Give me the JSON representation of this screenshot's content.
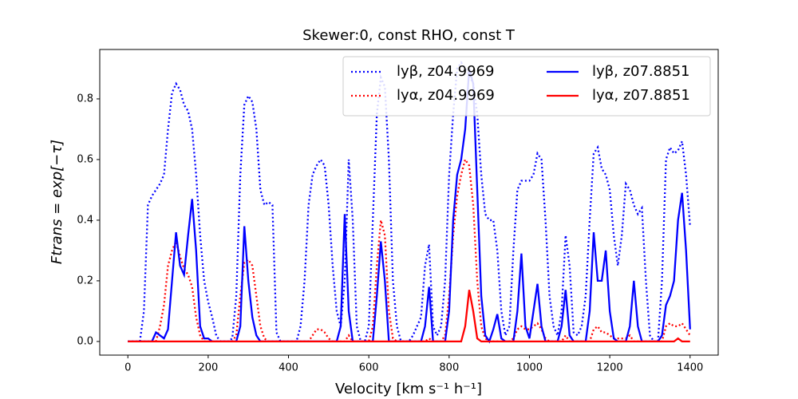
{
  "chart_data": {
    "type": "line",
    "title": "Skewer:0, const RHO, const T",
    "xlabel": "Velocity [km s⁻¹ h⁻¹]",
    "ylabel": "Ftrans = exp[−τ]",
    "xlim": [
      -70,
      1470
    ],
    "ylim": [
      -0.045,
      0.963
    ],
    "xticks": [
      0,
      200,
      400,
      600,
      800,
      1000,
      1200,
      1400
    ],
    "yticks": [
      {
        "value": 0,
        "label": "0.0"
      },
      0.2,
      0.4,
      0.6,
      0.8
    ],
    "legend": "upper right",
    "x": [
      0,
      10,
      20,
      30,
      40,
      50,
      60,
      70,
      80,
      90,
      100,
      110,
      120,
      130,
      140,
      150,
      160,
      170,
      180,
      190,
      200,
      210,
      220,
      230,
      240,
      250,
      260,
      270,
      280,
      290,
      300,
      310,
      320,
      330,
      340,
      350,
      360,
      370,
      380,
      390,
      400,
      410,
      420,
      430,
      440,
      450,
      460,
      470,
      480,
      490,
      500,
      510,
      520,
      530,
      540,
      550,
      560,
      570,
      580,
      590,
      600,
      610,
      620,
      630,
      640,
      650,
      660,
      670,
      680,
      690,
      700,
      710,
      720,
      730,
      740,
      750,
      760,
      770,
      780,
      790,
      800,
      810,
      820,
      830,
      840,
      850,
      860,
      870,
      880,
      890,
      900,
      910,
      920,
      930,
      940,
      950,
      960,
      970,
      980,
      990,
      1000,
      1010,
      1020,
      1030,
      1040,
      1050,
      1060,
      1070,
      1080,
      1090,
      1100,
      1110,
      1120,
      1130,
      1140,
      1150,
      1160,
      1170,
      1180,
      1190,
      1200,
      1210,
      1220,
      1230,
      1240,
      1250,
      1260,
      1270,
      1280,
      1290,
      1300,
      1310,
      1320,
      1330,
      1340,
      1350,
      1360,
      1370,
      1380,
      1390,
      1400
    ],
    "series": [
      {
        "name": "lyβ, z04.9969",
        "color": "#0000ff",
        "dash": "dotted",
        "values": [
          0,
          0,
          0,
          0,
          0.1,
          0.45,
          0.48,
          0.5,
          0.52,
          0.55,
          0.7,
          0.82,
          0.85,
          0.83,
          0.78,
          0.76,
          0.7,
          0.55,
          0.35,
          0.2,
          0.13,
          0.08,
          0.02,
          0,
          0,
          0,
          0.01,
          0.15,
          0.55,
          0.78,
          0.81,
          0.79,
          0.7,
          0.5,
          0.45,
          0.46,
          0.45,
          0.03,
          0,
          0,
          0,
          0,
          0,
          0.05,
          0.2,
          0.45,
          0.55,
          0.58,
          0.6,
          0.58,
          0.45,
          0.25,
          0.1,
          0.05,
          0.2,
          0.6,
          0.4,
          0.05,
          0,
          0,
          0.05,
          0.4,
          0.75,
          0.87,
          0.84,
          0.6,
          0.2,
          0.05,
          0,
          0,
          0,
          0.02,
          0.05,
          0.08,
          0.25,
          0.32,
          0.05,
          0.02,
          0.05,
          0.2,
          0.55,
          0.75,
          0.9,
          0.92,
          0.9,
          0.88,
          0.85,
          0.75,
          0.55,
          0.42,
          0.4,
          0.4,
          0.3,
          0.1,
          0.02,
          0.05,
          0.3,
          0.5,
          0.53,
          0.53,
          0.53,
          0.55,
          0.62,
          0.6,
          0.4,
          0.15,
          0.05,
          0.02,
          0.1,
          0.35,
          0.25,
          0.03,
          0.02,
          0.05,
          0.15,
          0.4,
          0.62,
          0.64,
          0.57,
          0.55,
          0.5,
          0.35,
          0.25,
          0.35,
          0.52,
          0.5,
          0.45,
          0.42,
          0.44,
          0.2,
          0.02,
          0,
          0,
          0.2,
          0.6,
          0.64,
          0.62,
          0.63,
          0.66,
          0.55,
          0.38
        ]
      },
      {
        "name": "lyα, z04.9969",
        "color": "#ff0000",
        "dash": "dotted",
        "values": [
          0,
          0,
          0,
          0,
          0,
          0,
          0,
          0,
          0.05,
          0.12,
          0.25,
          0.3,
          0.33,
          0.28,
          0.24,
          0.22,
          0.18,
          0.08,
          0.02,
          0,
          0,
          0,
          0,
          0,
          0,
          0,
          0,
          0.02,
          0.15,
          0.26,
          0.27,
          0.25,
          0.15,
          0.05,
          0.01,
          0,
          0,
          0,
          0,
          0,
          0,
          0,
          0,
          0,
          0,
          0,
          0.02,
          0.04,
          0.04,
          0.03,
          0.01,
          0,
          0,
          0,
          0,
          0.02,
          0,
          0,
          0,
          0,
          0,
          0.05,
          0.25,
          0.4,
          0.35,
          0.1,
          0.01,
          0,
          0,
          0,
          0,
          0,
          0,
          0,
          0,
          0.01,
          0,
          0,
          0,
          0.02,
          0.15,
          0.35,
          0.48,
          0.55,
          0.6,
          0.58,
          0.45,
          0.2,
          0.05,
          0.01,
          0,
          0,
          0,
          0,
          0,
          0,
          0.01,
          0.04,
          0.05,
          0.04,
          0.04,
          0.05,
          0.06,
          0.04,
          0.01,
          0,
          0,
          0,
          0,
          0.02,
          0,
          0,
          0,
          0,
          0,
          0,
          0.04,
          0.05,
          0.03,
          0.03,
          0.02,
          0.01,
          0.01,
          0.01,
          0.01,
          0.02,
          0,
          0,
          0,
          0,
          0,
          0,
          0,
          0,
          0.05,
          0.06,
          0.05,
          0.05,
          0.06,
          0.04,
          0.02
        ]
      },
      {
        "name": "lyβ, z07.8851",
        "color": "#0000ff",
        "dash": "solid",
        "values": [
          0,
          0,
          0,
          0,
          0,
          0,
          0,
          0.03,
          0.02,
          0.01,
          0.04,
          0.2,
          0.36,
          0.25,
          0.22,
          0.35,
          0.47,
          0.3,
          0.05,
          0.01,
          0.01,
          0,
          0,
          0,
          0,
          0,
          0,
          0,
          0.05,
          0.38,
          0.2,
          0.08,
          0.02,
          0,
          0,
          0,
          0,
          0,
          0,
          0,
          0,
          0,
          0,
          0,
          0,
          0,
          0,
          0,
          0,
          0,
          0,
          0,
          0,
          0.05,
          0.42,
          0.1,
          0,
          0,
          0,
          0,
          0,
          0,
          0.15,
          0.33,
          0.2,
          0,
          0,
          0,
          0,
          0,
          0,
          0,
          0,
          0,
          0.05,
          0.18,
          0,
          0,
          0,
          0,
          0.1,
          0.4,
          0.55,
          0.6,
          0.7,
          0.9,
          0.85,
          0.5,
          0.15,
          0.02,
          0,
          0.04,
          0.09,
          0.01,
          0,
          0,
          0,
          0.1,
          0.29,
          0.05,
          0.01,
          0.1,
          0.19,
          0.05,
          0,
          0,
          0,
          0,
          0.05,
          0.17,
          0.02,
          0,
          0,
          0,
          0,
          0.1,
          0.36,
          0.2,
          0.2,
          0.3,
          0.1,
          0.01,
          0,
          0,
          0,
          0.05,
          0.2,
          0.05,
          0,
          0,
          0,
          0,
          0,
          0.02,
          0.12,
          0.15,
          0.2,
          0.4,
          0.49,
          0.3,
          0.04
        ]
      },
      {
        "name": "lyα, z07.8851",
        "color": "#ff0000",
        "dash": "solid",
        "values": [
          0,
          0,
          0,
          0,
          0,
          0,
          0,
          0,
          0,
          0,
          0,
          0,
          0,
          0,
          0,
          0,
          0,
          0,
          0,
          0,
          0,
          0,
          0,
          0,
          0,
          0,
          0,
          0,
          0,
          0,
          0,
          0,
          0,
          0,
          0,
          0,
          0,
          0,
          0,
          0,
          0,
          0,
          0,
          0,
          0,
          0,
          0,
          0,
          0,
          0,
          0,
          0,
          0,
          0,
          0,
          0,
          0,
          0,
          0,
          0,
          0,
          0,
          0,
          0,
          0,
          0,
          0,
          0,
          0,
          0,
          0,
          0,
          0,
          0,
          0,
          0,
          0,
          0,
          0,
          0,
          0,
          0,
          0,
          0,
          0.05,
          0.17,
          0.1,
          0.01,
          0,
          0,
          0,
          0,
          0,
          0,
          0,
          0,
          0,
          0,
          0,
          0,
          0,
          0,
          0,
          0,
          0,
          0,
          0,
          0,
          0,
          0,
          0,
          0,
          0,
          0,
          0,
          0,
          0,
          0,
          0,
          0,
          0,
          0,
          0,
          0,
          0,
          0,
          0,
          0,
          0,
          0,
          0,
          0,
          0,
          0,
          0,
          0,
          0,
          0.01,
          0,
          0,
          0
        ]
      }
    ]
  }
}
